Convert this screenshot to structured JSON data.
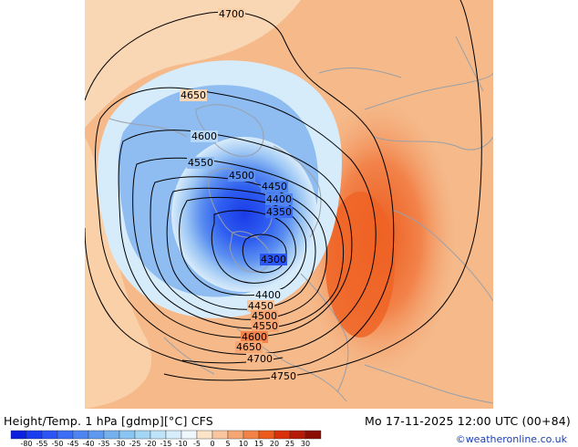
{
  "map": {
    "background_color": "#f5b98a",
    "region": "Northern hemisphere polar view centred near the Canadian Arctic, North America / Greenland",
    "features": [
      "cold-core-low",
      "warm-ridge",
      "coastlines",
      "borders"
    ],
    "contour_labels": [
      {
        "text": "4700",
        "value": 4700
      },
      {
        "text": "4650",
        "value": 4650
      },
      {
        "text": "4600",
        "value": 4600
      },
      {
        "text": "4550",
        "value": 4550
      },
      {
        "text": "4500",
        "value": 4500
      },
      {
        "text": "4450",
        "value": 4450
      },
      {
        "text": "4400",
        "value": 4400
      },
      {
        "text": "4350",
        "value": 4350
      },
      {
        "text": "4300",
        "value": 4300
      },
      {
        "text": "4400",
        "value": 4400
      },
      {
        "text": "4450",
        "value": 4450
      },
      {
        "text": "4500",
        "value": 4500
      },
      {
        "text": "4550",
        "value": 4550
      },
      {
        "text": "4600",
        "value": 4600
      },
      {
        "text": "4650",
        "value": 4650
      },
      {
        "text": "4700",
        "value": 4700
      },
      {
        "text": "4750",
        "value": 4750
      }
    ]
  },
  "footer": {
    "title": "Height/Temp. 1 hPa [gdmp][°C] CFS",
    "valid_time": "Mo 17-11-2025 12:00 UTC (00+84)",
    "credit": "©weatheronline.co.uk"
  },
  "colorbar": {
    "ticks": [
      "-80",
      "-55",
      "-50",
      "-45",
      "-40",
      "-35",
      "-30",
      "-25",
      "-20",
      "-15",
      "-10",
      "-5",
      "0",
      "5",
      "10",
      "15",
      "20",
      "25",
      "30"
    ],
    "colors": [
      "#0a1fe0",
      "#1a3cf0",
      "#2b56f5",
      "#3c6ef5",
      "#4d84f2",
      "#5e99ef",
      "#74afee",
      "#8ac4f0",
      "#a3d6f5",
      "#bde4f8",
      "#d6eefb",
      "#eef7fc",
      "#fbe3c8",
      "#f8c59e",
      "#f5a673",
      "#f28347",
      "#ec5a1c",
      "#d9320b",
      "#b51a06",
      "#8a0c02"
    ]
  }
}
